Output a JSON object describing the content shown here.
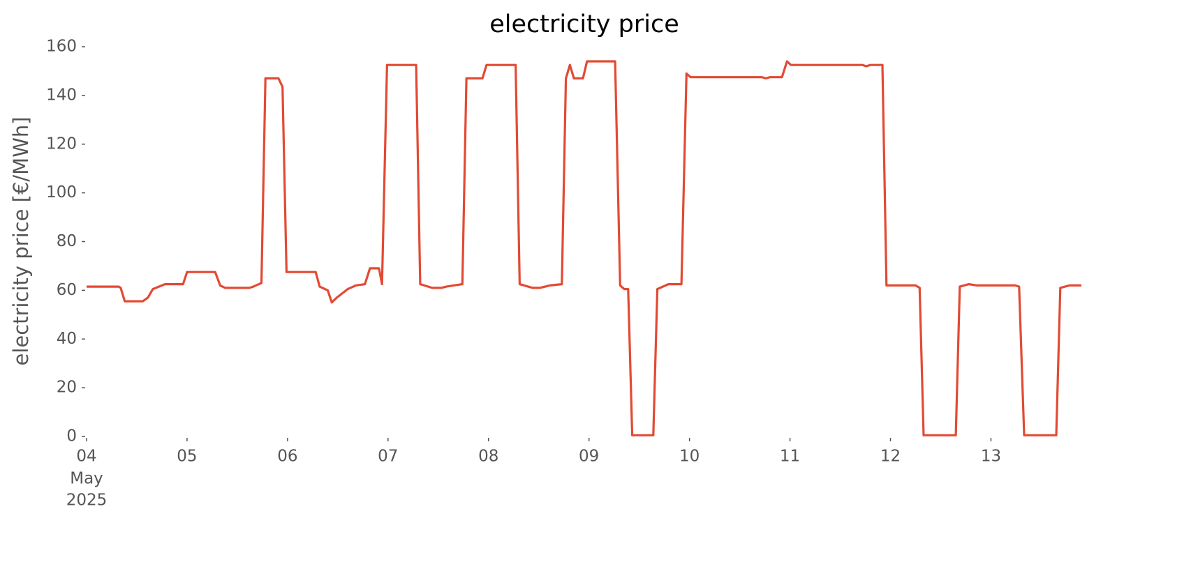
{
  "chart_data": {
    "type": "line",
    "title": "electricity price",
    "y_label": "electricity price [€/MWh]",
    "x": [
      4.0,
      4.32,
      4.34,
      4.38,
      4.56,
      4.61,
      4.66,
      4.78,
      4.96,
      5.0,
      5.28,
      5.33,
      5.38,
      5.62,
      5.66,
      5.74,
      5.78,
      5.91,
      5.95,
      5.99,
      6.28,
      6.32,
      6.4,
      6.44,
      6.49,
      6.6,
      6.68,
      6.77,
      6.82,
      6.91,
      6.94,
      6.99,
      7.28,
      7.32,
      7.44,
      7.53,
      7.58,
      7.74,
      7.78,
      7.94,
      7.98,
      8.27,
      8.31,
      8.44,
      8.51,
      8.61,
      8.73,
      8.77,
      8.81,
      8.85,
      8.94,
      8.98,
      9.26,
      9.31,
      9.35,
      9.39,
      9.43,
      9.64,
      9.68,
      9.79,
      9.92,
      9.97,
      10.01,
      10.72,
      10.76,
      10.8,
      10.92,
      10.97,
      11.01,
      11.72,
      11.76,
      11.8,
      11.92,
      11.96,
      12.25,
      12.29,
      12.33,
      12.65,
      12.69,
      12.78,
      12.86,
      13.24,
      13.28,
      13.33,
      13.65,
      13.69,
      13.78,
      13.9
    ],
    "values": [
      61.5,
      61.5,
      61,
      55.5,
      55.5,
      57,
      60.5,
      62.5,
      62.5,
      67.5,
      67.5,
      62,
      61,
      61,
      61.5,
      63,
      147,
      147,
      143.5,
      67.5,
      67.5,
      61.5,
      60,
      55,
      57,
      60.5,
      62,
      62.5,
      69,
      69,
      62.5,
      152.5,
      152.5,
      62.5,
      61,
      61,
      61.5,
      62.5,
      147,
      147,
      152.5,
      152.5,
      62.5,
      61,
      61,
      62,
      62.5,
      147,
      152.5,
      147,
      147,
      154,
      154,
      62,
      60.5,
      60.5,
      0.5,
      0.5,
      60.5,
      62.5,
      62.5,
      149,
      147.5,
      147.5,
      147,
      147.5,
      147.5,
      154,
      152.5,
      152.5,
      152,
      152.5,
      152.5,
      62,
      62,
      61,
      0.5,
      0.5,
      61.5,
      62.5,
      62,
      62,
      61.5,
      0.5,
      0.5,
      61,
      62,
      62
    ],
    "color": "#e24a33",
    "xlim": [
      4,
      13.9
    ],
    "xticks": [
      {
        "value": 4,
        "label": "04"
      },
      {
        "value": 5,
        "label": "05"
      },
      {
        "value": 6,
        "label": "06"
      },
      {
        "value": 7,
        "label": "07"
      },
      {
        "value": 8,
        "label": "08"
      },
      {
        "value": 9,
        "label": "09"
      },
      10,
      11,
      12,
      13
    ],
    "x_first_tick_month": "May",
    "x_first_tick_year": "2025",
    "ylim": [
      0,
      160
    ],
    "yticks": [
      0,
      20,
      40,
      60,
      80,
      100,
      120,
      140,
      160
    ]
  }
}
